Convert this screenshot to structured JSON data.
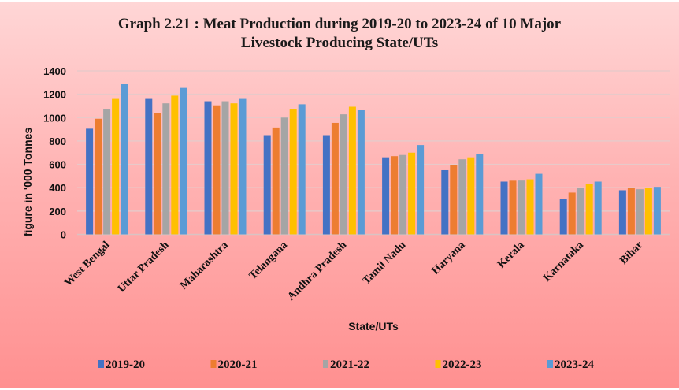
{
  "chart_data": {
    "type": "bar",
    "title_line1": "Graph 2.21 : Meat Production during 2019-20 to 2023-24 of 10 Major",
    "title_line2": "Livestock Producing State/UTs",
    "xlabel": "State/UTs",
    "ylabel": "figure in  '000 Tonnes",
    "ylim": [
      0,
      1400
    ],
    "yticks": [
      0,
      200,
      400,
      600,
      800,
      1000,
      1200,
      1400
    ],
    "grid": true,
    "legend_position": "bottom",
    "categories": [
      "West Bengal",
      "Uttar Pradesh",
      "Maharashtra",
      "Telangana",
      "Andhra Pradesh",
      "Tamil Nadu",
      "Haryana",
      "Kerala",
      "Karnataka",
      "Bihar"
    ],
    "series": [
      {
        "name": "2019-20",
        "color": "#4472C4",
        "values": [
          905,
          1160,
          1140,
          850,
          850,
          660,
          550,
          452,
          303,
          378
        ]
      },
      {
        "name": "2020-21",
        "color": "#ED7D31",
        "values": [
          990,
          1038,
          1105,
          915,
          955,
          670,
          593,
          460,
          358,
          395
        ]
      },
      {
        "name": "2021-22",
        "color": "#A5A5A5",
        "values": [
          1076,
          1122,
          1140,
          1000,
          1028,
          680,
          643,
          461,
          395,
          387
        ]
      },
      {
        "name": "2022-23",
        "color": "#FFC000",
        "values": [
          1160,
          1188,
          1122,
          1076,
          1093,
          700,
          660,
          472,
          434,
          395
        ]
      },
      {
        "name": "2023-24",
        "color": "#5B9BD5",
        "values": [
          1292,
          1254,
          1160,
          1114,
          1066,
          765,
          688,
          519,
          452,
          407
        ]
      }
    ]
  }
}
